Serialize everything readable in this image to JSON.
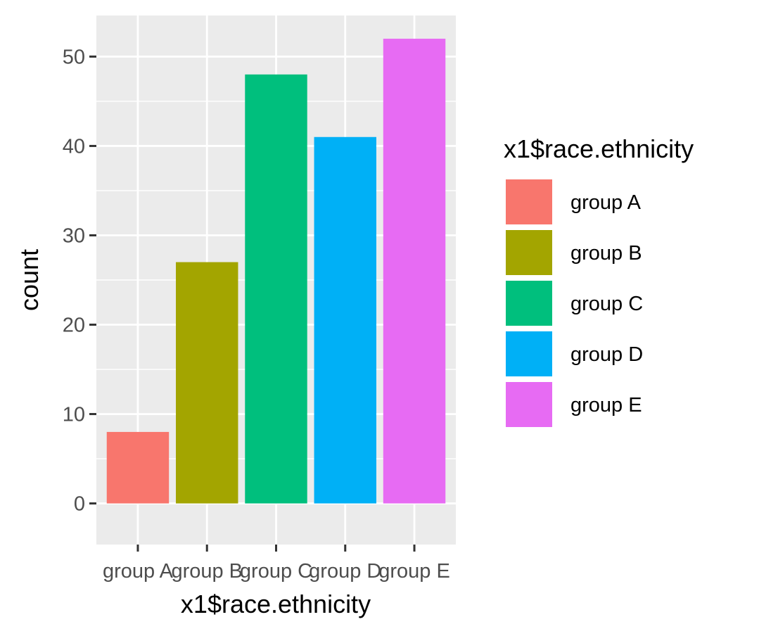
{
  "chart_data": {
    "type": "bar",
    "xlabel": "x1$race.ethnicity",
    "ylabel": "count",
    "categories": [
      "group A",
      "group B",
      "group C",
      "group D",
      "group E"
    ],
    "values": [
      8,
      27,
      48,
      41,
      52
    ],
    "ylim": [
      -4.6,
      54.6
    ],
    "yticks": [
      0,
      10,
      20,
      30,
      40,
      50
    ],
    "colors": [
      "#F8766D",
      "#A3A500",
      "#00BF7D",
      "#00B0F6",
      "#E76BF3"
    ],
    "legend": {
      "title": "x1$race.ethnicity",
      "position": "right",
      "entries": [
        "group A",
        "group B",
        "group C",
        "group D",
        "group E"
      ]
    },
    "panel_background": "#EBEBEB",
    "grid_color": "#FFFFFF",
    "grid": true
  }
}
